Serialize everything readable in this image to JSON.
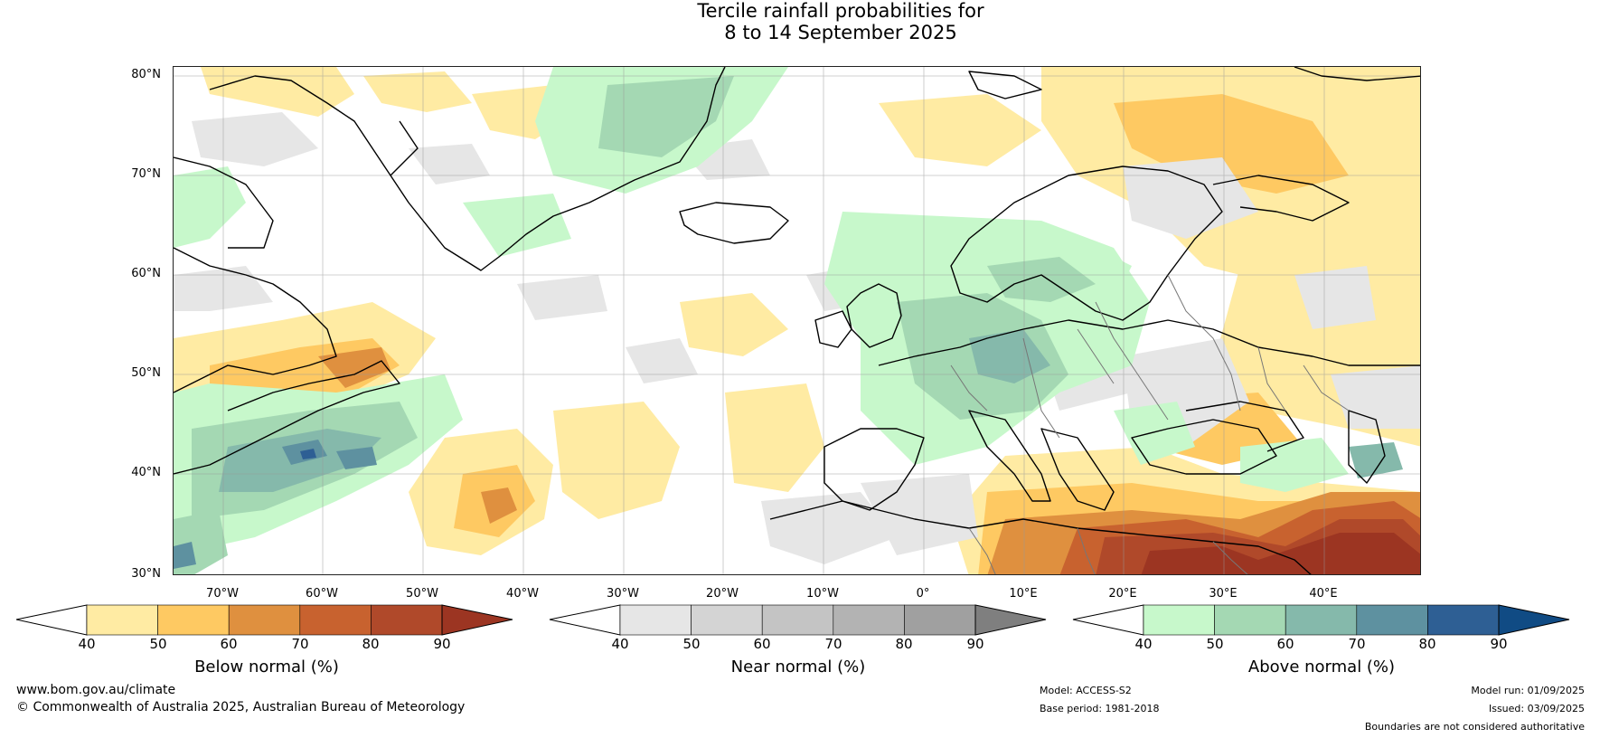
{
  "title_line1": "Tercile rainfall probabilities for",
  "title_line2": "8 to 14 September 2025",
  "lat_labels": [
    "80°N",
    "70°N",
    "60°N",
    "50°N",
    "40°N",
    "30°N"
  ],
  "lon_labels": [
    "70°W",
    "60°W",
    "50°W",
    "40°W",
    "30°W",
    "20°W",
    "10°W",
    "0°",
    "10°E",
    "20°E",
    "30°E",
    "40°E"
  ],
  "colorbars": [
    {
      "title": "Below normal (%)",
      "ticks": [
        "40",
        "50",
        "60",
        "70",
        "80",
        "90"
      ],
      "colors": [
        "#ffffff",
        "#ffeba3",
        "#fec962",
        "#df903f",
        "#c8622f",
        "#b0492a",
        "#9c3522"
      ]
    },
    {
      "title": "Near normal (%)",
      "ticks": [
        "40",
        "50",
        "60",
        "70",
        "80",
        "90"
      ],
      "colors": [
        "#ffffff",
        "#e6e6e6",
        "#d4d4d4",
        "#c4c4c4",
        "#b3b3b3",
        "#a0a0a0",
        "#7f7f7f"
      ]
    },
    {
      "title": "Above normal (%)",
      "ticks": [
        "40",
        "50",
        "60",
        "70",
        "80",
        "90"
      ],
      "colors": [
        "#ffffff",
        "#c7f8cb",
        "#a4d8b3",
        "#85b9ab",
        "#5e91a0",
        "#2e5f94",
        "#104b84"
      ]
    }
  ],
  "footer": {
    "website": "www.bom.gov.au/climate",
    "copyright": "© Commonwealth of Australia 2025, Australian Bureau of Meteorology",
    "model": "Model: ACCESS-S2",
    "base_period": "Base period: 1981-2018",
    "model_run": "Model run: 01/09/2025",
    "issued": "Issued: 03/09/2025",
    "disclaimer": "Boundaries are not considered authoritative"
  }
}
